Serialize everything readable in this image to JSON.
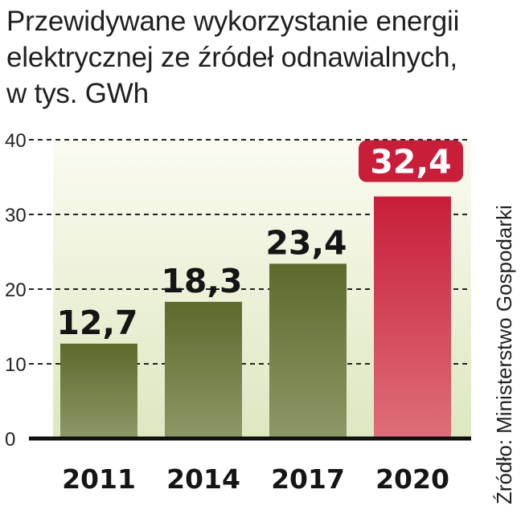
{
  "chart_data": {
    "type": "bar",
    "title_lines": [
      "Przewidywane wykorzystanie energii",
      "elektrycznej ze źródeł odnawialnych,",
      "w tys. GWh"
    ],
    "categories": [
      "2011",
      "2014",
      "2017",
      "2020"
    ],
    "values": [
      12.7,
      18.3,
      23.4,
      32.4
    ],
    "value_labels": [
      "12,7",
      "18,3",
      "23,4",
      "32,4"
    ],
    "highlight_index": 3,
    "y_ticks": [
      0,
      10,
      20,
      30,
      40
    ],
    "ylim": [
      0,
      40
    ],
    "xlabel": "",
    "ylabel": "",
    "grid": true,
    "source": "Źródło: Ministerstwo Gospodarki"
  },
  "colors": {
    "bar": "#5c6a2c",
    "bar_light": "#8c9866",
    "highlight": "#c81e3a",
    "highlight_light": "#de6f7a",
    "background_top": "#fbfbf1",
    "background_bottom": "#dde7c0",
    "axis": "#111111",
    "grid": "#222222"
  }
}
